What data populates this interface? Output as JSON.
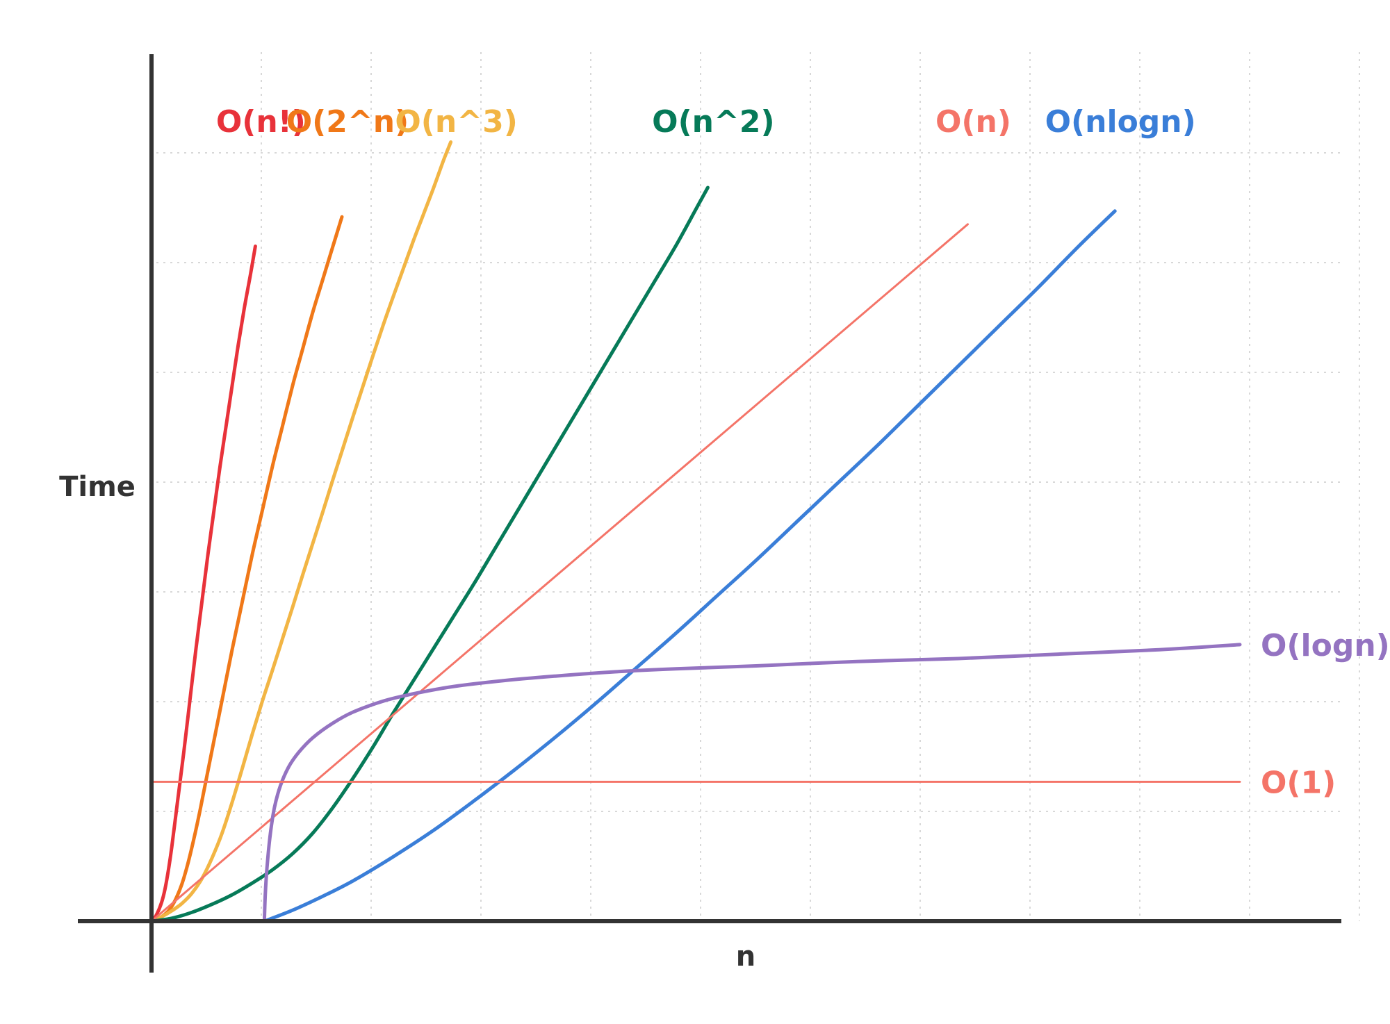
{
  "chart_data": {
    "type": "line",
    "title": "",
    "xlabel": "n",
    "ylabel": "Time",
    "grid": true,
    "axis_color": "#333333",
    "grid_color": "#cccccc",
    "series": [
      {
        "name": "O(n!)",
        "color": "#e8323a",
        "label_position": "top",
        "x": [
          0.0,
          0.15,
          0.25,
          0.4,
          0.55,
          0.7,
          0.85,
          1.0,
          1.3,
          1.6,
          1.9,
          2.2,
          2.5,
          2.8,
          3.1,
          3.4,
          3.7,
          4.0,
          4.3,
          4.6,
          4.9,
          5.15
        ],
        "y": [
          0.0,
          0.04,
          0.09,
          0.18,
          0.3,
          0.48,
          0.72,
          1.0,
          1.65,
          2.3,
          3.0,
          3.7,
          4.35,
          5.0,
          5.6,
          6.2,
          6.75,
          7.3,
          7.85,
          8.35,
          8.8,
          9.2
        ]
      },
      {
        "name": "O(2^n)",
        "color": "#f07818",
        "label_position": "top",
        "x": [
          0.0,
          0.3,
          0.6,
          0.9,
          1.2,
          1.5,
          1.8,
          2.1,
          2.4,
          2.8,
          3.2,
          3.6,
          4.0,
          4.5,
          5.0,
          5.5,
          6.0,
          6.5,
          7.0,
          7.5,
          8.0,
          8.5,
          9.0,
          9.45
        ],
        "y": [
          0.0,
          0.03,
          0.08,
          0.16,
          0.3,
          0.5,
          0.78,
          1.12,
          1.5,
          2.05,
          2.6,
          3.15,
          3.7,
          4.35,
          5.0,
          5.6,
          6.2,
          6.75,
          7.3,
          7.8,
          8.3,
          8.75,
          9.2,
          9.6
        ]
      },
      {
        "name": "O(n^3)",
        "color": "#f2b544",
        "label_position": "top",
        "x": [
          0.0,
          0.5,
          1.0,
          1.5,
          2.0,
          2.5,
          3.0,
          3.5,
          4.0,
          4.5,
          5.0,
          5.5,
          6.0,
          6.5,
          7.0,
          7.5,
          8.0,
          8.5,
          9.0,
          9.5,
          10.0,
          10.5,
          11.0,
          11.5,
          12.0,
          12.5,
          13.0,
          13.5,
          14.0,
          14.5,
          14.85
        ],
        "y": [
          0.0,
          0.06,
          0.14,
          0.24,
          0.38,
          0.58,
          0.86,
          1.2,
          1.62,
          2.08,
          2.55,
          3.0,
          3.42,
          3.85,
          4.28,
          4.72,
          5.15,
          5.58,
          6.02,
          6.45,
          6.88,
          7.3,
          7.72,
          8.13,
          8.52,
          8.9,
          9.28,
          9.64,
          10.0,
          10.38,
          10.62
        ]
      },
      {
        "name": "O(n^2)",
        "color": "#067a58",
        "label_position": "top",
        "x": [
          0.0,
          1.0,
          2.0,
          3.0,
          4.0,
          5.0,
          6.0,
          7.0,
          8.0,
          9.0,
          10.0,
          11.0,
          12.0,
          13.0,
          14.0,
          15.0,
          16.0,
          17.0,
          18.0,
          19.0,
          20.0,
          21.0,
          22.0,
          23.0,
          24.0,
          25.0,
          26.0,
          27.0,
          27.6
        ],
        "y": [
          0.0,
          0.04,
          0.12,
          0.23,
          0.36,
          0.52,
          0.7,
          0.92,
          1.2,
          1.55,
          1.95,
          2.38,
          2.84,
          3.28,
          3.72,
          4.16,
          4.6,
          5.06,
          5.52,
          5.98,
          6.44,
          6.9,
          7.36,
          7.82,
          8.28,
          8.74,
          9.2,
          9.7,
          10.0
        ]
      },
      {
        "name": "O(nlogn)",
        "color": "#3a7ed8",
        "label_position": "top",
        "x": [
          5.6,
          7.0,
          8.5,
          10.0,
          12.0,
          14.0,
          16.0,
          18.0,
          20.0,
          22.0,
          24.0,
          26.0,
          28.0,
          30.0,
          32.0,
          34.0,
          36.0,
          38.0,
          40.0,
          42.0,
          44.0,
          46.0,
          47.8
        ],
        "y": [
          0.0,
          0.15,
          0.34,
          0.55,
          0.88,
          1.24,
          1.64,
          2.06,
          2.5,
          2.96,
          3.44,
          3.92,
          4.42,
          4.92,
          5.44,
          5.96,
          6.48,
          7.02,
          7.56,
          8.1,
          8.64,
          9.2,
          9.68
        ]
      },
      {
        "name": "O(n)",
        "color": "#f47468",
        "label_position": "top",
        "x": [
          0.0,
          40.5
        ],
        "y": [
          0.0,
          9.5
        ]
      },
      {
        "name": "O(logn)",
        "color": "#9473c1",
        "label_position": "right",
        "x": [
          5.6,
          5.65,
          5.75,
          5.9,
          6.1,
          6.4,
          6.8,
          7.3,
          8.0,
          9.0,
          10.0,
          11.5,
          13.0,
          15.0,
          17.5,
          20.0,
          23.0,
          26.0,
          30.0,
          35.0,
          40.0,
          45.0,
          50.0,
          54.0
        ],
        "y": [
          0.0,
          0.4,
          0.8,
          1.2,
          1.55,
          1.85,
          2.1,
          2.3,
          2.5,
          2.7,
          2.85,
          3.0,
          3.1,
          3.2,
          3.28,
          3.34,
          3.4,
          3.44,
          3.48,
          3.54,
          3.58,
          3.64,
          3.7,
          3.77
        ]
      },
      {
        "name": "O(1)",
        "color": "#f47468",
        "label_position": "right",
        "x": [
          0.0,
          54.0
        ],
        "y": [
          1.9,
          1.9
        ]
      }
    ]
  }
}
